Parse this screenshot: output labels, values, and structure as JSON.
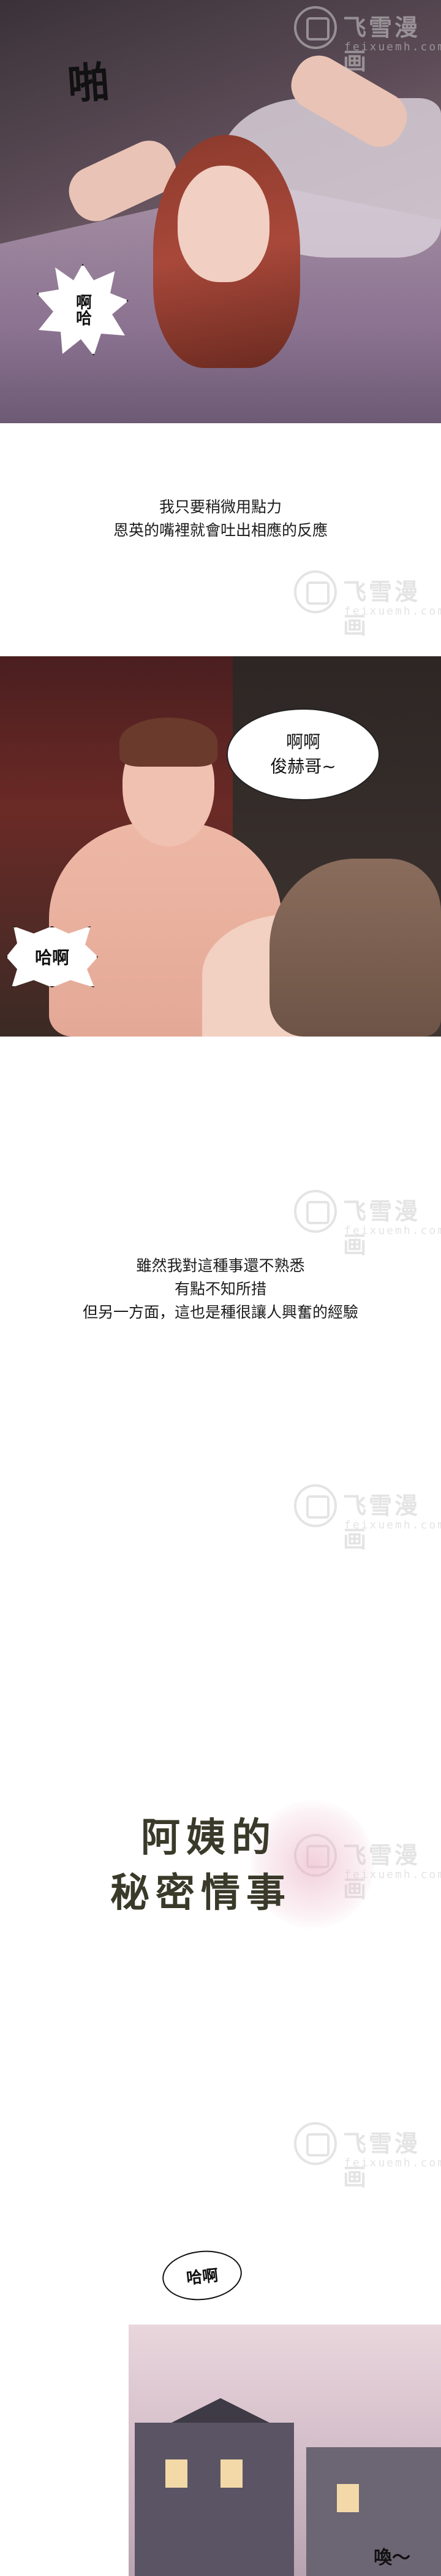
{
  "watermark": {
    "text": "飞雪漫画",
    "url": "feixuemh.com"
  },
  "panel1": {
    "sfx_pa": "啪",
    "bubble_haha": "啊哈"
  },
  "narration1": {
    "line1": "我只要稍微用點力",
    "line2": "恩英的嘴裡就會吐出相應的反應"
  },
  "panel2": {
    "bubble_ahah_line1": "啊啊",
    "bubble_ahah_line2": "俊赫哥~",
    "bubble_haa": "哈啊"
  },
  "narration2": {
    "line1": "雖然我對這種事還不熟悉",
    "line2": "有點不知所措",
    "line3": "但另一方面，這也是種很讓人興奮的經驗"
  },
  "title": {
    "line1": "阿姨的",
    "line2": "秘密情事"
  },
  "panel3": {
    "bubble_haha": "哈啊",
    "sfx_huan": "喚～"
  }
}
